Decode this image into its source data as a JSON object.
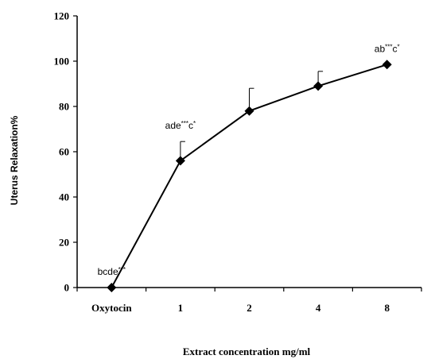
{
  "chart_data": {
    "type": "line",
    "title": "",
    "xlabel": "Extract concentration mg/ml",
    "ylabel": "Uterus Relaxation%",
    "categories": [
      "Oxytocin",
      "1",
      "2",
      "4",
      "8"
    ],
    "ylim": [
      0,
      120
    ],
    "yticks": [
      0,
      20,
      40,
      60,
      80,
      100,
      120
    ],
    "grid": false,
    "legend": "none",
    "series": [
      {
        "values": [
          0,
          56,
          78,
          89,
          98.5
        ],
        "error_plus": [
          0,
          8.5,
          10,
          6.5,
          0
        ],
        "marker": "diamond",
        "color": "#000000"
      }
    ],
    "annotations": [
      {
        "index": 0,
        "parts": [
          {
            "t": "bcde"
          },
          {
            "t": "***",
            "sup": true
          }
        ]
      },
      {
        "index": 1,
        "parts": [
          {
            "t": "ade"
          },
          {
            "t": "***",
            "sup": true
          },
          {
            "t": "c"
          },
          {
            "t": "*",
            "sup": true
          }
        ]
      },
      {
        "index": 4,
        "parts": [
          {
            "t": "ab"
          },
          {
            "t": "***",
            "sup": true
          },
          {
            "t": "c"
          },
          {
            "t": "*",
            "sup": true
          }
        ]
      }
    ]
  }
}
